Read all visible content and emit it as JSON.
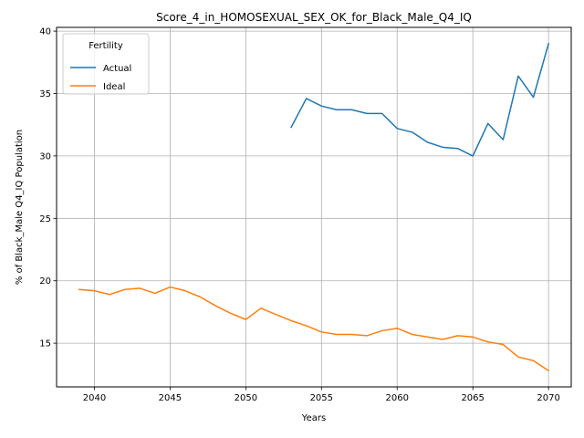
{
  "chart_data": {
    "type": "line",
    "title": "Score_4_in_HOMOSEXUAL_SEX_OK_for_Black_Male_Q4_IQ",
    "xlabel": "Years",
    "ylabel": "% of Black_Male Q4_IQ Population",
    "xlim": [
      2037.5,
      2071.5
    ],
    "ylim": [
      11.5,
      40.3
    ],
    "xticks": [
      2040,
      2045,
      2050,
      2055,
      2060,
      2065,
      2070
    ],
    "yticks": [
      15,
      20,
      25,
      30,
      35,
      40
    ],
    "grid": true,
    "legend": {
      "title": "Fertility",
      "placement": "top-left"
    },
    "series": [
      {
        "name": "Actual",
        "color": "#1f77b4",
        "x": [
          2053,
          2054,
          2055,
          2056,
          2057,
          2058,
          2059,
          2060,
          2061,
          2062,
          2063,
          2064,
          2065,
          2066,
          2067,
          2068,
          2069,
          2070
        ],
        "values": [
          32.3,
          34.6,
          34.0,
          33.7,
          33.7,
          33.4,
          33.4,
          32.2,
          31.9,
          31.1,
          30.7,
          30.6,
          30.0,
          32.6,
          31.3,
          36.4,
          34.7,
          39.0
        ]
      },
      {
        "name": "Ideal",
        "color": "#ff7f0e",
        "x": [
          2039,
          2040,
          2041,
          2042,
          2043,
          2044,
          2045,
          2046,
          2047,
          2048,
          2049,
          2050,
          2051,
          2052,
          2053,
          2054,
          2055,
          2056,
          2057,
          2058,
          2059,
          2060,
          2061,
          2062,
          2063,
          2064,
          2065,
          2066,
          2067,
          2068,
          2069,
          2070
        ],
        "values": [
          19.3,
          19.2,
          18.9,
          19.3,
          19.4,
          19.0,
          19.5,
          19.2,
          18.7,
          18.0,
          17.4,
          16.9,
          17.8,
          17.3,
          16.8,
          16.4,
          15.9,
          15.7,
          15.7,
          15.6,
          16.0,
          16.2,
          15.7,
          15.5,
          15.3,
          15.6,
          15.5,
          15.1,
          14.9,
          13.9,
          13.6,
          12.8
        ]
      }
    ]
  }
}
